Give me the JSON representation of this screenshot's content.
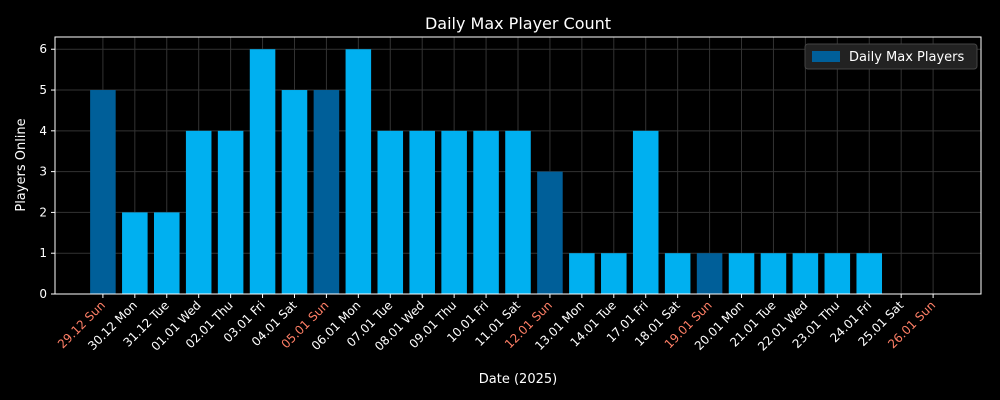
{
  "chart_data": {
    "type": "bar",
    "title": "Daily Max Player Count",
    "xlabel": "Date (2025)",
    "ylabel": "Players Online",
    "ylim": [
      0,
      6.3
    ],
    "yticks": [
      0,
      1,
      2,
      3,
      4,
      5,
      6
    ],
    "grid": true,
    "legend": {
      "label": "Daily Max Players",
      "position": "top-right"
    },
    "categories": [
      "29.12 Sun",
      "30.12 Mon",
      "31.12 Tue",
      "01.01 Wed",
      "02.01 Thu",
      "03.01 Fri",
      "04.01 Sat",
      "05.01 Sun",
      "06.01 Mon",
      "07.01 Tue",
      "08.01 Wed",
      "09.01 Thu",
      "10.01 Fri",
      "11.01 Sat",
      "12.01 Sun",
      "13.01 Mon",
      "14.01 Tue",
      "17.01 Fri",
      "18.01 Sat",
      "19.01 Sun",
      "20.01 Mon",
      "21.01 Tue",
      "22.01 Wed",
      "23.01 Thu",
      "24.01 Fri",
      "25.01 Sat",
      "26.01 Sun"
    ],
    "values": [
      5,
      2,
      2,
      4,
      4,
      6,
      5,
      5,
      6,
      4,
      4,
      4,
      4,
      4,
      3,
      1,
      1,
      4,
      1,
      1,
      1,
      1,
      1,
      1,
      1,
      0,
      0
    ],
    "sunday": [
      true,
      false,
      false,
      false,
      false,
      false,
      false,
      true,
      false,
      false,
      false,
      false,
      false,
      false,
      true,
      false,
      false,
      false,
      false,
      true,
      false,
      false,
      false,
      false,
      false,
      false,
      true
    ],
    "colors": {
      "weekday_bar": "#00b0f0",
      "sunday_bar": "#005f99",
      "sunday_label": "#ff7f66",
      "text": "#ffffff",
      "grid": "#333333",
      "axis": "#ffffff",
      "background": "#000000",
      "legend_bg": "#222222"
    }
  }
}
